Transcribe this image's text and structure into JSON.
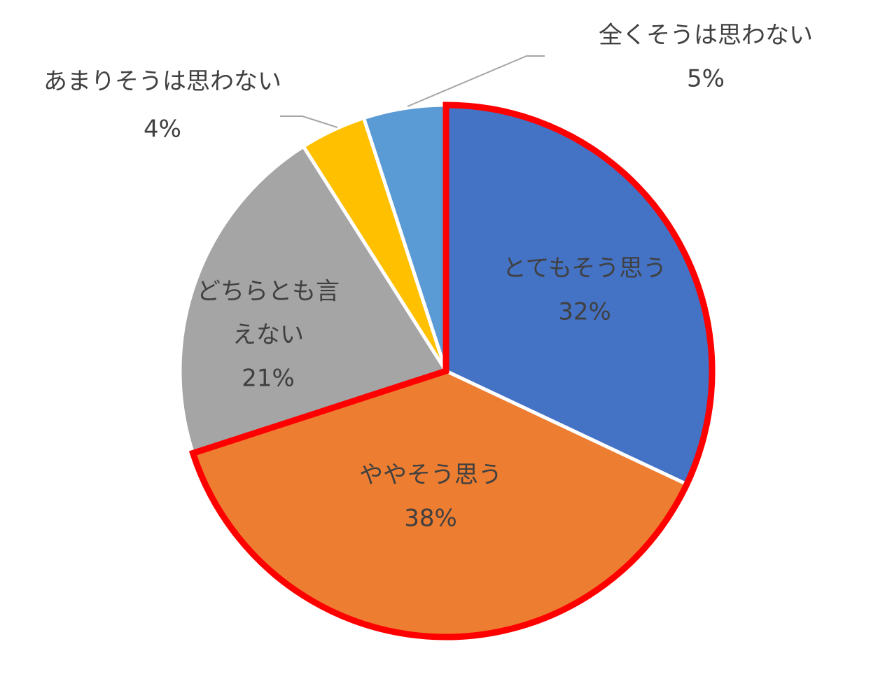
{
  "chart_data": {
    "type": "pie",
    "title": "",
    "slices": [
      {
        "label_lines": [
          "とてもそう思う"
        ],
        "value": 32,
        "value_label": "32%",
        "color": "#4472C4",
        "highlight": true
      },
      {
        "label_lines": [
          "ややそう思う"
        ],
        "value": 38,
        "value_label": "38%",
        "color": "#ED7D31",
        "highlight": true
      },
      {
        "label_lines": [
          "どちらとも言",
          "えない"
        ],
        "value": 21,
        "value_label": "21%",
        "color": "#A5A5A5",
        "highlight": false
      },
      {
        "label_lines": [
          "あまりそうは思わない"
        ],
        "value": 4,
        "value_label": "4%",
        "color": "#FFC000",
        "highlight": false
      },
      {
        "label_lines": [
          "全くそうは思わない"
        ],
        "value": 5,
        "value_label": "5%",
        "color": "#5B9BD5",
        "highlight": false
      }
    ],
    "start_angle": "12 o'clock",
    "direction": "clockwise",
    "highlight_outline_color": "#FF0000",
    "legend": "none"
  }
}
